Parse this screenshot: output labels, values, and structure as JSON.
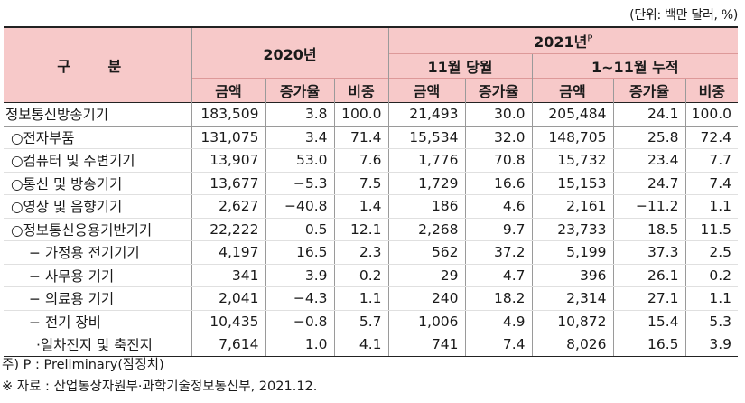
{
  "unit_note": "(단위: 백만 달러, %)",
  "header": {
    "category": "구 분",
    "year2020": "2020년",
    "year2021": "2021년",
    "year2021_sup": "P",
    "nov_month": "11월 당월",
    "jan_nov": "1~11월 누적",
    "col_amount": "금액",
    "col_growth": "증가율",
    "col_share": "비중"
  },
  "rows": [
    {
      "name": "정보통신방송기기",
      "level": 0,
      "cells": [
        "183,509",
        "3.8",
        "100.0",
        "21,493",
        "30.0",
        "205,484",
        "24.1",
        "100.0"
      ]
    },
    {
      "name": "○전자부품",
      "level": 1,
      "cells": [
        "131,075",
        "3.4",
        "71.4",
        "15,534",
        "32.0",
        "148,705",
        "25.8",
        "72.4"
      ]
    },
    {
      "name": "○컴퓨터 및 주변기기",
      "level": 1,
      "cells": [
        "13,907",
        "53.0",
        "7.6",
        "1,776",
        "70.8",
        "15,732",
        "23.4",
        "7.7"
      ]
    },
    {
      "name": "○통신 및 방송기기",
      "level": 1,
      "cells": [
        "13,677",
        "−5.3",
        "7.5",
        "1,729",
        "16.6",
        "15,153",
        "24.7",
        "7.4"
      ]
    },
    {
      "name": "○영상 및 음향기기",
      "level": 1,
      "cells": [
        "2,627",
        "−40.8",
        "1.4",
        "186",
        "4.6",
        "2,161",
        "−11.2",
        "1.1"
      ]
    },
    {
      "name": "○정보통신응용기반기기",
      "level": 1,
      "cells": [
        "22,222",
        "0.5",
        "12.1",
        "2,268",
        "9.7",
        "23,733",
        "18.5",
        "11.5"
      ]
    },
    {
      "name": "− 가정용 전기기기",
      "level": 2,
      "cells": [
        "4,197",
        "16.5",
        "2.3",
        "562",
        "37.2",
        "5,199",
        "37.3",
        "2.5"
      ]
    },
    {
      "name": "− 사무용 기기",
      "level": 2,
      "cells": [
        "341",
        "3.9",
        "0.2",
        "29",
        "4.7",
        "396",
        "26.1",
        "0.2"
      ]
    },
    {
      "name": "− 의료용 기기",
      "level": 2,
      "cells": [
        "2,041",
        "−4.3",
        "1.1",
        "240",
        "18.2",
        "2,314",
        "27.1",
        "1.1"
      ]
    },
    {
      "name": "− 전기 장비",
      "level": 2,
      "cells": [
        "10,435",
        "−0.8",
        "5.7",
        "1,006",
        "4.9",
        "10,872",
        "15.4",
        "5.3"
      ]
    },
    {
      "name": "·일차전지 및 축전지",
      "level": 3,
      "cells": [
        "7,614",
        "1.0",
        "4.1",
        "741",
        "7.4",
        "8,026",
        "16.5",
        "3.9"
      ]
    }
  ],
  "notes": [
    "주) P : Preliminary(잠정치)",
    "※ 자료 : 산업통상자원부·과학기술정보통신부, 2021.12."
  ]
}
